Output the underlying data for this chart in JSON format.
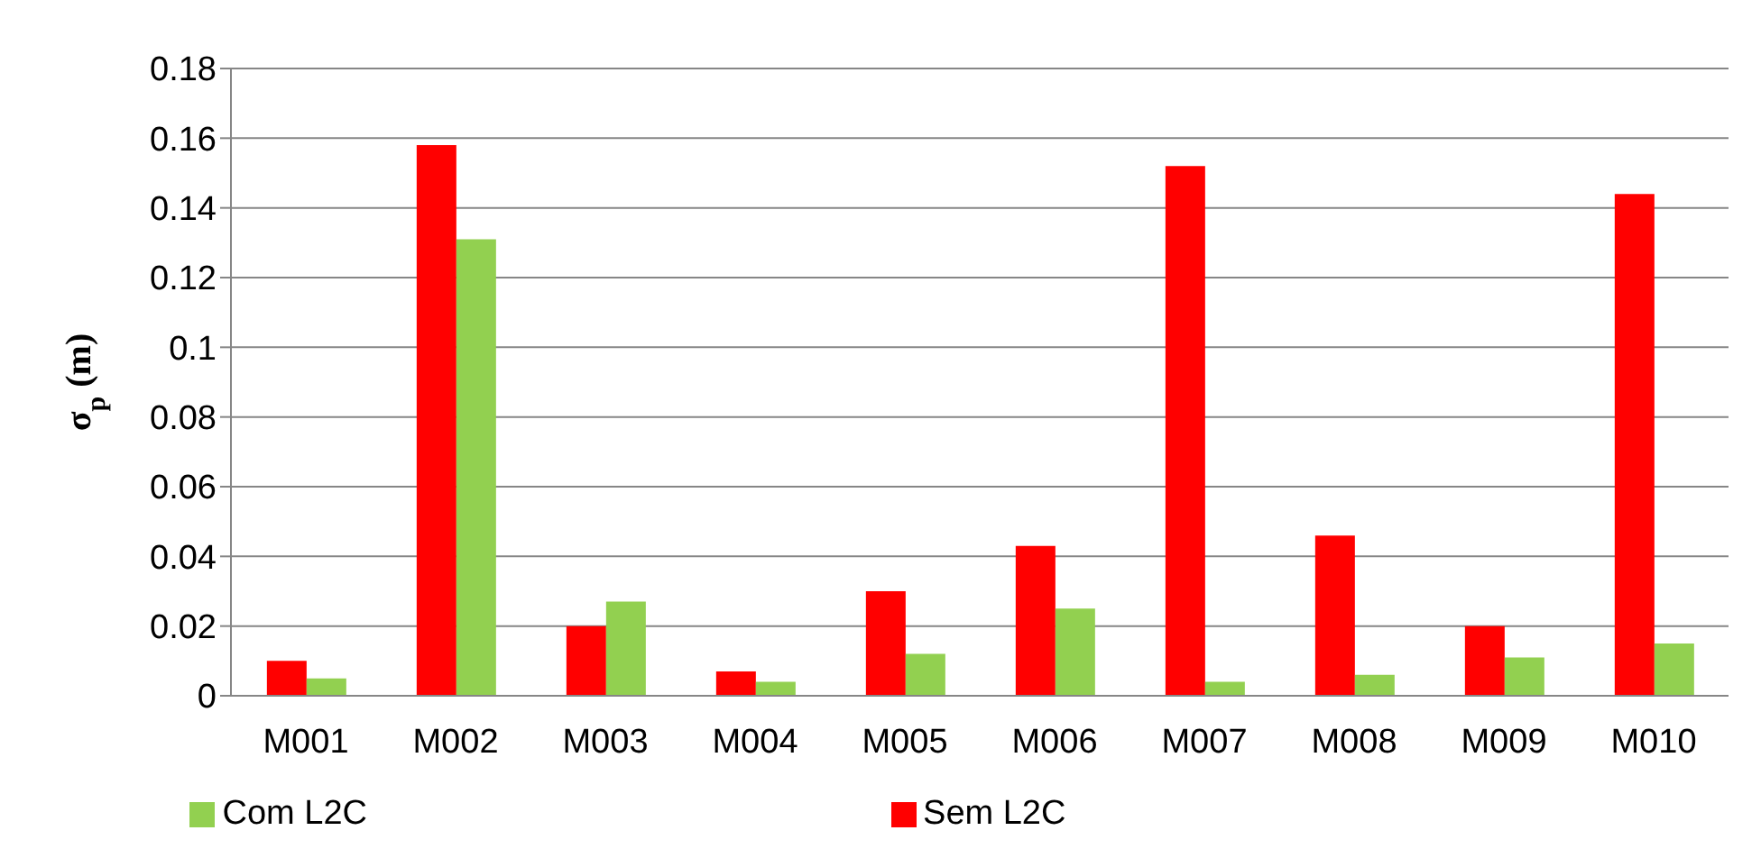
{
  "chart_data": {
    "type": "bar",
    "ylabel": "σ$_{p}$ (m)",
    "categories": [
      "M001",
      "M002",
      "M003",
      "M004",
      "M005",
      "M006",
      "M007",
      "M008",
      "M009",
      "M010"
    ],
    "series": [
      {
        "name": "Sem L2C",
        "color": "#ff0000",
        "values": [
          0.01,
          0.158,
          0.02,
          0.007,
          0.03,
          0.043,
          0.152,
          0.046,
          0.02,
          0.144
        ]
      },
      {
        "name": "Com L2C",
        "color": "#92d050",
        "values": [
          0.005,
          0.131,
          0.027,
          0.004,
          0.012,
          0.025,
          0.004,
          0.006,
          0.011,
          0.015
        ]
      }
    ],
    "ylim": [
      0,
      0.18
    ],
    "yticks": [
      0,
      0.02,
      0.04,
      0.06,
      0.08,
      0.1,
      0.12,
      0.14,
      0.16,
      0.18
    ],
    "grid": "y",
    "legend": "bottom"
  }
}
